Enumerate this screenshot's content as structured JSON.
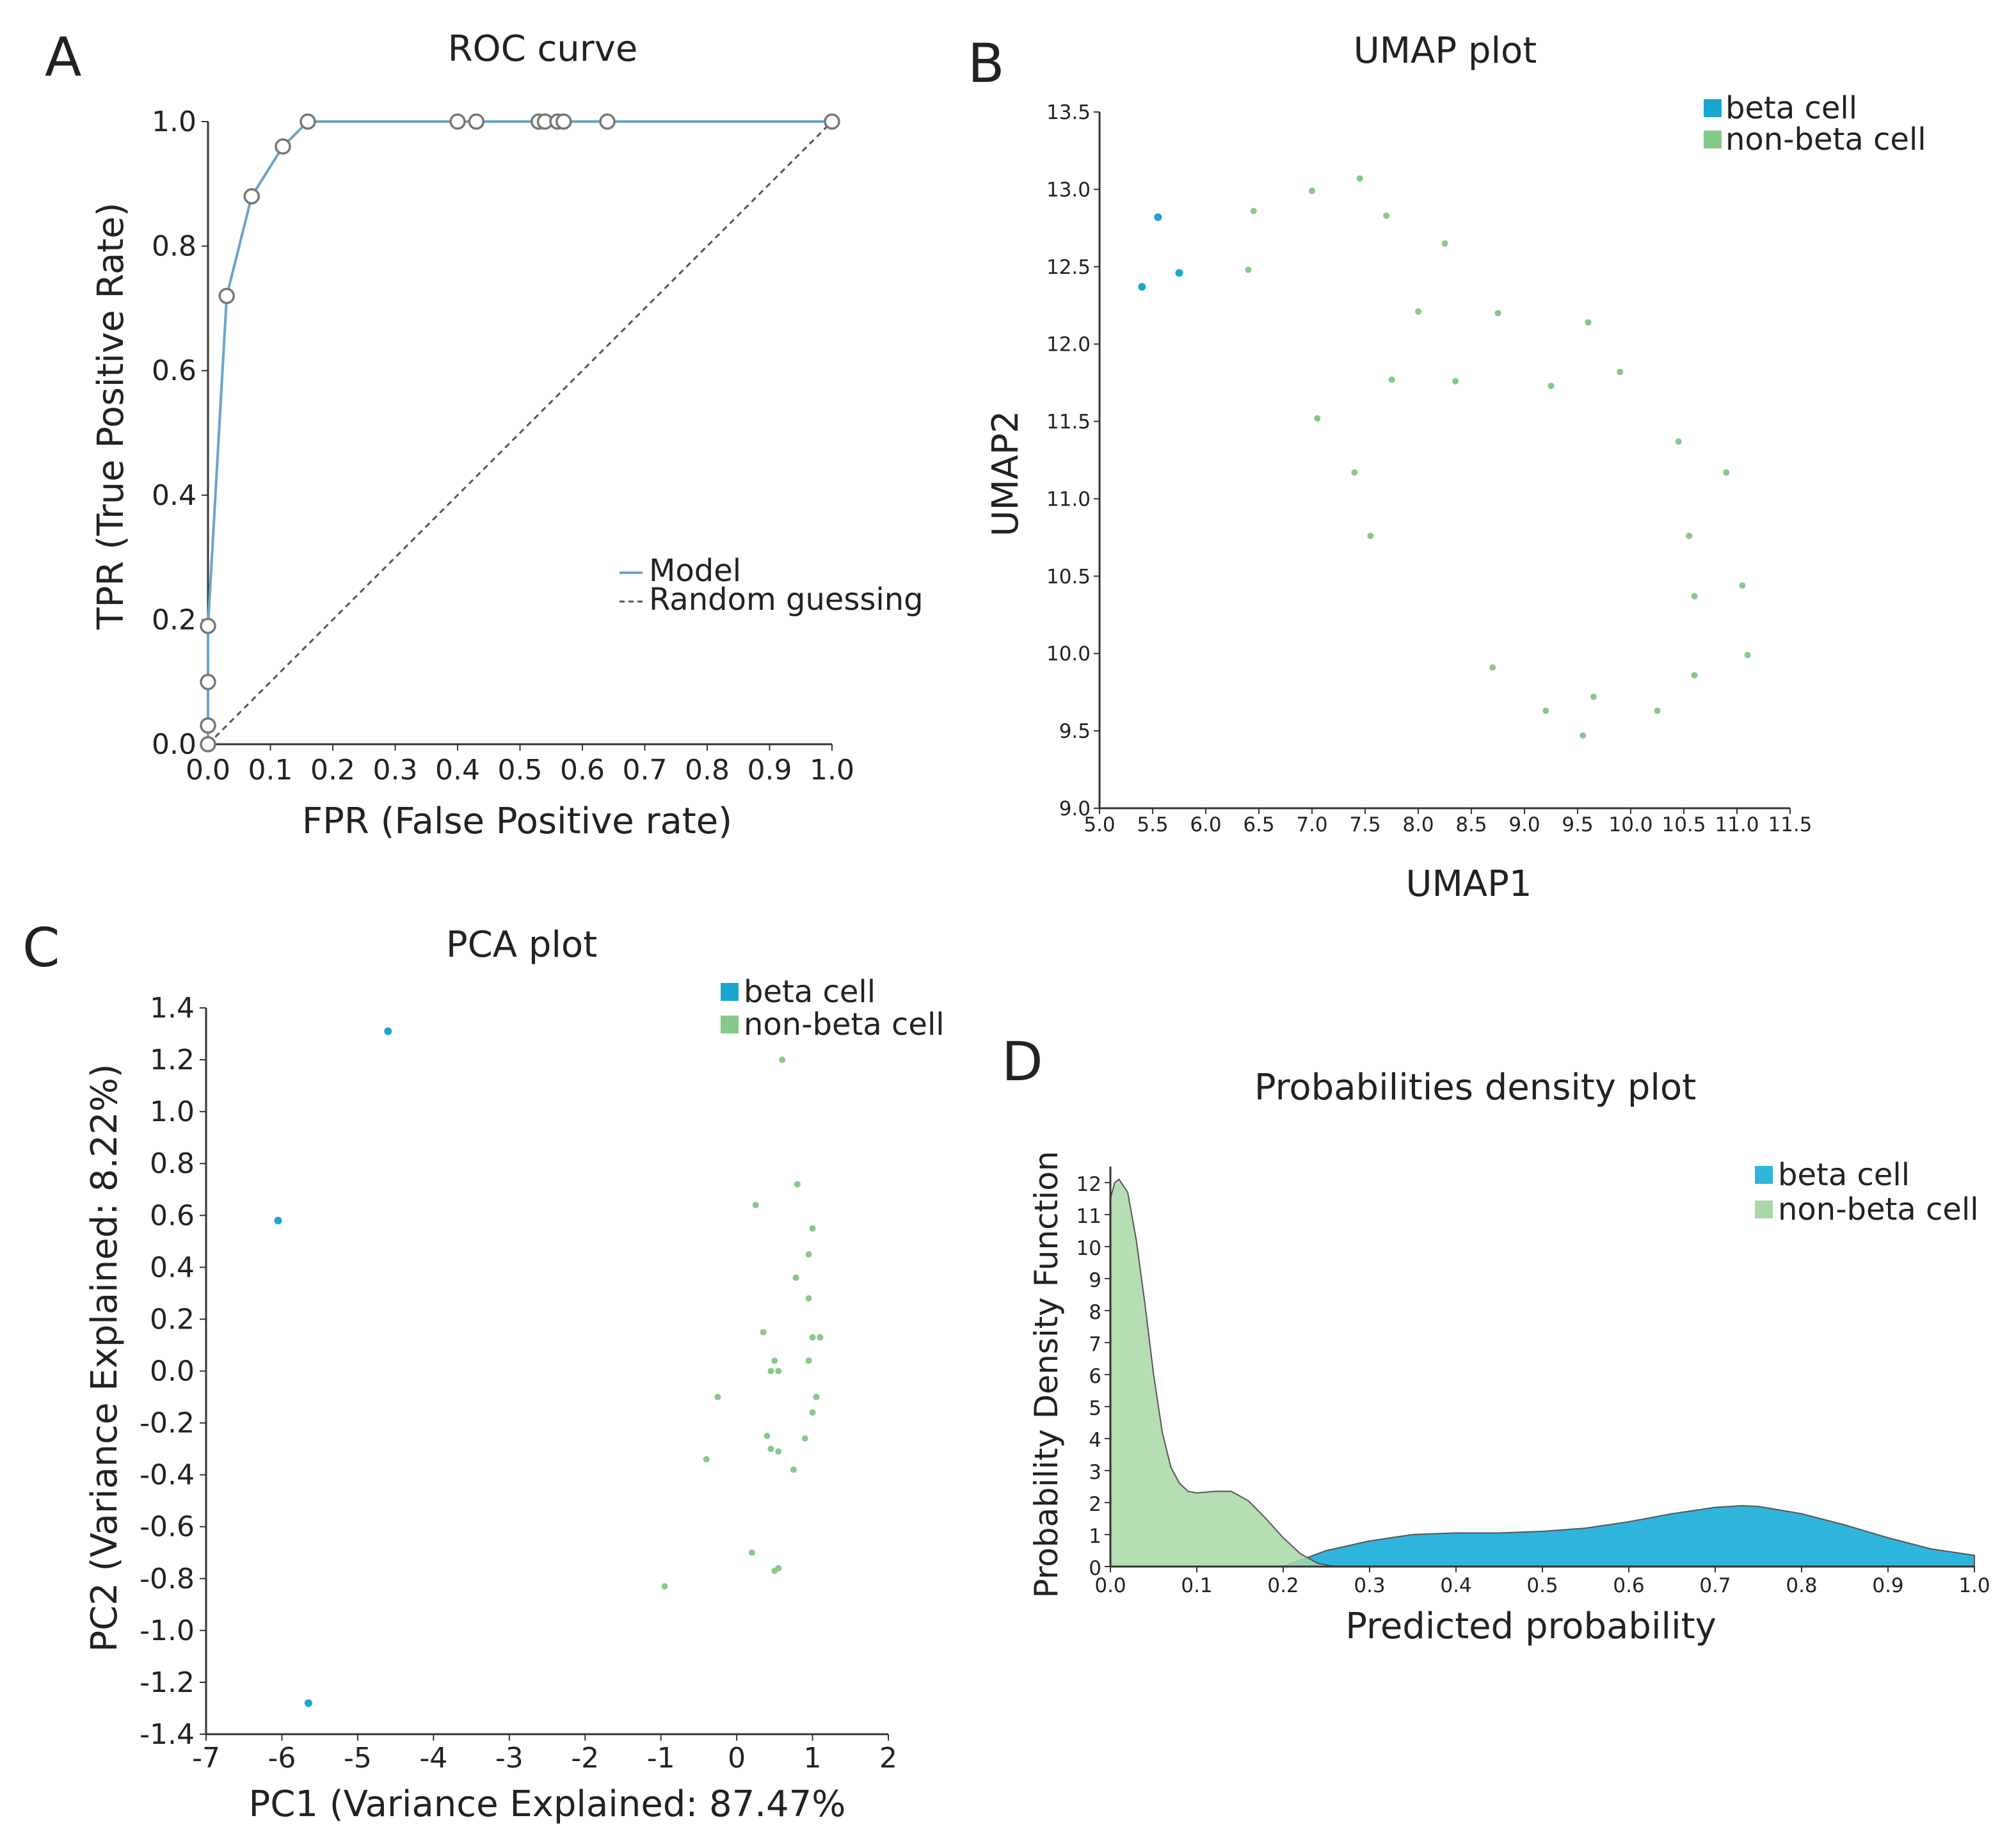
{
  "colors": {
    "model_line": "#6aa4c8",
    "random_line": "#555555",
    "axis": "#333333",
    "beta": "#1aa6cf",
    "nonbeta": "#86c98a",
    "beta_fill": "#2fb5dc",
    "nonbeta_fill": "#a8d8a6"
  },
  "chart_data": [
    {
      "panel": "A",
      "type": "line",
      "title": "ROC curve",
      "xlabel": "FPR (False Positive rate)",
      "ylabel": "TPR (True Positive Rate)",
      "xlim": [
        0,
        1
      ],
      "ylim": [
        0,
        1
      ],
      "xticks": [
        "0.0",
        "0.1",
        "0.2",
        "0.3",
        "0.4",
        "0.5",
        "0.6",
        "0.7",
        "0.8",
        "0.9",
        "1.0"
      ],
      "yticks": [
        "0.0",
        "0.2",
        "0.4",
        "0.6",
        "0.8",
        "1.0"
      ],
      "legend": [
        "Model",
        "Random guessing"
      ],
      "series": [
        {
          "name": "Model",
          "x": [
            0.0,
            0.0,
            0.0,
            0.0,
            0.03,
            0.07,
            0.12,
            0.16,
            0.4,
            0.43,
            0.53,
            0.54,
            0.56,
            0.57,
            0.64,
            1.0
          ],
          "y": [
            0.0,
            0.03,
            0.1,
            0.19,
            0.72,
            0.88,
            0.96,
            1.0,
            1.0,
            1.0,
            1.0,
            1.0,
            1.0,
            1.0,
            1.0,
            1.0
          ]
        },
        {
          "name": "Random guessing",
          "x": [
            0,
            1
          ],
          "y": [
            0,
            1
          ]
        }
      ]
    },
    {
      "panel": "B",
      "type": "scatter",
      "title": "UMAP plot",
      "xlabel": "UMAP1",
      "ylabel": "UMAP2",
      "xlim": [
        5.0,
        11.5
      ],
      "ylim": [
        9.0,
        13.5
      ],
      "xticks": [
        "5.0",
        "5.5",
        "6.0",
        "6.5",
        "7.0",
        "7.5",
        "8.0",
        "8.5",
        "9.0",
        "9.5",
        "10.0",
        "10.5",
        "11.0",
        "11.5"
      ],
      "yticks": [
        "9.0",
        "9.5",
        "10.0",
        "10.5",
        "11.0",
        "11.5",
        "12.0",
        "12.5",
        "13.0",
        "13.5"
      ],
      "legend": [
        "beta cell",
        "non-beta cell"
      ],
      "series": [
        {
          "name": "beta cell",
          "x": [
            5.55,
            5.4,
            5.75
          ],
          "y": [
            12.82,
            12.37,
            12.46
          ]
        },
        {
          "name": "non-beta cell",
          "x": [
            6.45,
            6.4,
            7.0,
            7.45,
            7.7,
            8.25,
            8.0,
            8.75,
            9.6,
            9.9,
            7.75,
            8.35,
            9.25,
            7.05,
            7.4,
            7.55,
            10.45,
            10.9,
            10.55,
            10.6,
            11.05,
            8.7,
            9.2,
            9.65,
            9.55,
            10.25,
            10.6,
            11.1
          ],
          "y": [
            12.86,
            12.48,
            12.99,
            13.07,
            12.83,
            12.65,
            12.21,
            12.2,
            12.14,
            11.82,
            11.77,
            11.76,
            11.73,
            11.52,
            11.17,
            10.76,
            11.37,
            11.17,
            10.76,
            10.37,
            10.44,
            9.91,
            9.63,
            9.72,
            9.47,
            9.63,
            9.86,
            9.99
          ]
        }
      ]
    },
    {
      "panel": "C",
      "type": "scatter",
      "title": "PCA plot",
      "xlabel": "PC1 (Variance Explained: 87.47%",
      "ylabel": "PC2 (Variance Explained: 8.22%)",
      "xlim": [
        -7,
        2
      ],
      "ylim": [
        -1.4,
        1.4
      ],
      "xticks": [
        "-7",
        "-6",
        "-5",
        "-4",
        "-3",
        "-2",
        "-1",
        "0",
        "1",
        "2"
      ],
      "yticks": [
        "-1.4",
        "-1.2",
        "-1.0",
        "-0.8",
        "-0.6",
        "-0.4",
        "-0.2",
        "0.0",
        "0.2",
        "0.4",
        "0.6",
        "0.8",
        "1.0",
        "1.2",
        "1.4"
      ],
      "legend": [
        "beta cell",
        "non-beta cell"
      ],
      "series": [
        {
          "name": "beta cell",
          "x": [
            -4.6,
            -6.05,
            -5.65
          ],
          "y": [
            1.31,
            0.58,
            -1.28
          ]
        },
        {
          "name": "non-beta cell",
          "x": [
            0.6,
            0.8,
            0.25,
            1.0,
            0.95,
            0.78,
            0.95,
            0.35,
            1.1,
            1.0,
            0.95,
            0.5,
            0.45,
            0.55,
            1.05,
            -0.25,
            1.0,
            0.4,
            0.9,
            0.45,
            0.55,
            0.75,
            -0.4,
            0.2,
            0.55,
            0.5,
            -0.95
          ],
          "y": [
            1.2,
            0.72,
            0.64,
            0.55,
            0.45,
            0.36,
            0.28,
            0.15,
            0.13,
            0.13,
            0.04,
            0.04,
            0.0,
            0.0,
            -0.1,
            -0.1,
            -0.16,
            -0.25,
            -0.26,
            -0.3,
            -0.31,
            -0.38,
            -0.34,
            -0.7,
            -0.76,
            -0.77,
            -0.83
          ]
        }
      ]
    },
    {
      "panel": "D",
      "type": "area",
      "title": "Probabilities density plot",
      "xlabel": "Predicted probability",
      "ylabel": "Probability Density Function",
      "xlim": [
        0.0,
        1.0
      ],
      "ylim": [
        0,
        12.5
      ],
      "xticks": [
        "0.0",
        "0.1",
        "0.2",
        "0.3",
        "0.4",
        "0.5",
        "0.6",
        "0.7",
        "0.8",
        "0.9",
        "1.0"
      ],
      "yticks": [
        "0",
        "1",
        "2",
        "3",
        "4",
        "5",
        "6",
        "7",
        "8",
        "9",
        "10",
        "11",
        "12"
      ],
      "legend": [
        "beta cell",
        "non-beta cell"
      ],
      "series": [
        {
          "name": "beta cell",
          "x": [
            0.2,
            0.22,
            0.25,
            0.3,
            0.35,
            0.4,
            0.45,
            0.5,
            0.55,
            0.6,
            0.65,
            0.7,
            0.73,
            0.75,
            0.8,
            0.85,
            0.9,
            0.95,
            1.0
          ],
          "y": [
            0.0,
            0.2,
            0.5,
            0.8,
            1.0,
            1.05,
            1.05,
            1.1,
            1.2,
            1.4,
            1.65,
            1.85,
            1.9,
            1.88,
            1.65,
            1.3,
            0.9,
            0.55,
            0.35
          ]
        },
        {
          "name": "non-beta cell",
          "x": [
            0.0,
            0.005,
            0.01,
            0.02,
            0.03,
            0.04,
            0.05,
            0.06,
            0.07,
            0.08,
            0.09,
            0.1,
            0.12,
            0.14,
            0.16,
            0.18,
            0.2,
            0.22,
            0.24,
            0.26
          ],
          "y": [
            11.5,
            12.0,
            12.1,
            11.7,
            10.2,
            8.2,
            6.0,
            4.2,
            3.1,
            2.6,
            2.35,
            2.3,
            2.35,
            2.35,
            2.05,
            1.5,
            0.9,
            0.4,
            0.1,
            0.0
          ]
        }
      ]
    }
  ]
}
